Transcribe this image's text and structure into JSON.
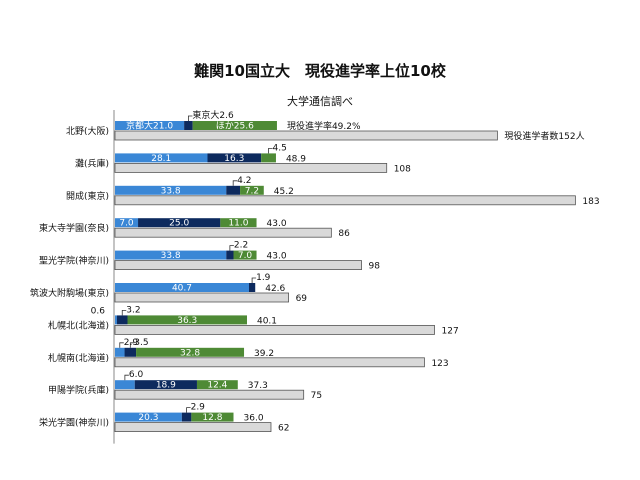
{
  "chart_data": {
    "type": "bar",
    "title": "難関10国立大　現役進学率上位10校",
    "subtitle": "大学通信調べ",
    "categories": [
      "北野(大阪)",
      "灘(兵庫)",
      "開成(東京)",
      "東大寺学園(奈良)",
      "聖光学院(神奈川)",
      "筑波大附駒場(東京)",
      "札幌北(北海道)",
      "札幌南(北海道)",
      "甲陽学院(兵庫)",
      "栄光学園(神奈川)"
    ],
    "series": [
      {
        "name": "京都大",
        "color": "#3a87d6",
        "values": [
          21.0,
          28.1,
          33.8,
          7.0,
          33.8,
          40.7,
          0.6,
          2.9,
          6.0,
          20.3
        ]
      },
      {
        "name": "東京大",
        "color": "#0d2a5e",
        "values": [
          2.6,
          16.3,
          4.2,
          25.0,
          2.2,
          1.9,
          3.2,
          3.5,
          18.9,
          2.9
        ]
      },
      {
        "name": "ほか",
        "color": "#4e8a35",
        "values": [
          25.6,
          4.5,
          7.2,
          11.0,
          7.0,
          0.0,
          36.3,
          32.8,
          12.4,
          12.8
        ]
      }
    ],
    "display_labels": [
      [
        "京都大21.0",
        "東京大2.6",
        "ほか25.6"
      ],
      [
        "28.1",
        "16.3",
        "4.5"
      ],
      [
        "33.8",
        "4.2",
        "7.2"
      ],
      [
        "7.0",
        "25.0",
        "11.0"
      ],
      [
        "33.8",
        "2.2",
        "7.0"
      ],
      [
        "40.7",
        "1.9",
        ""
      ],
      [
        "0.6",
        "3.2",
        "36.3"
      ],
      [
        "2.9",
        "3.5",
        "32.8"
      ],
      [
        "6.0",
        "18.9",
        "12.4"
      ],
      [
        "20.3",
        "2.9",
        "12.8"
      ]
    ],
    "totals": [
      "現役進学率49.2%",
      "48.9",
      "45.2",
      "43.0",
      "43.0",
      "42.6",
      "40.1",
      "39.2",
      "37.3",
      "36.0"
    ],
    "students": {
      "name": "現役進学者数",
      "color": "#d9d9d9",
      "values": [
        152,
        108,
        183,
        86,
        98,
        69,
        127,
        123,
        75,
        62
      ]
    },
    "student_labels": [
      "現役進学者数152人",
      "108",
      "183",
      "86",
      "98",
      "69",
      "127",
      "123",
      "75",
      "62"
    ],
    "rate_axis_max": 120,
    "count_axis_max": 190
  }
}
